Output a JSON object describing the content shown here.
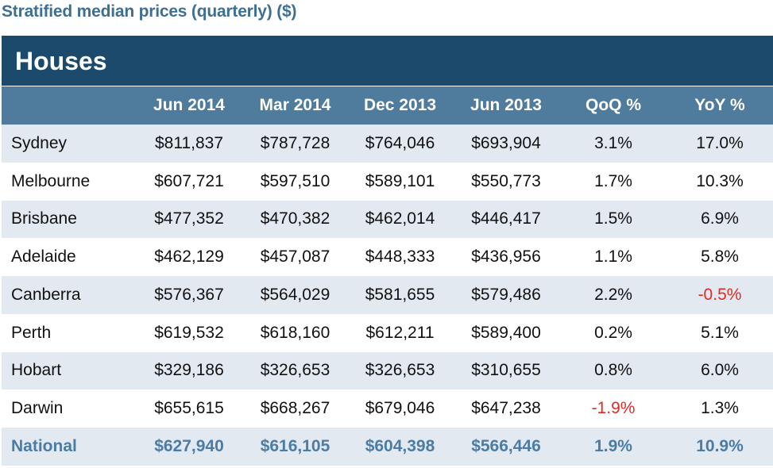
{
  "title": "Stratified median prices (quarterly) ($)",
  "section": "Houses",
  "columns": [
    "",
    "Jun 2014",
    "Mar 2014",
    "Dec 2013",
    "Jun 2013",
    "QoQ %",
    "YoY %"
  ],
  "rows": [
    {
      "city": "Sydney",
      "jun2014": "$811,837",
      "mar2014": "$787,728",
      "dec2013": "$764,046",
      "jun2013": "$693,904",
      "qoq": "3.1%",
      "yoy": "17.0%"
    },
    {
      "city": "Melbourne",
      "jun2014": "$607,721",
      "mar2014": "$597,510",
      "dec2013": "$589,101",
      "jun2013": "$550,773",
      "qoq": "1.7%",
      "yoy": "10.3%"
    },
    {
      "city": "Brisbane",
      "jun2014": "$477,352",
      "mar2014": "$470,382",
      "dec2013": "$462,014",
      "jun2013": "$446,417",
      "qoq": "1.5%",
      "yoy": "6.9%"
    },
    {
      "city": "Adelaide",
      "jun2014": "$462,129",
      "mar2014": "$457,087",
      "dec2013": "$448,333",
      "jun2013": "$436,956",
      "qoq": "1.1%",
      "yoy": "5.8%"
    },
    {
      "city": "Canberra",
      "jun2014": "$576,367",
      "mar2014": "$564,029",
      "dec2013": "$581,655",
      "jun2013": "$579,486",
      "qoq": "2.2%",
      "yoy": "-0.5%"
    },
    {
      "city": "Perth",
      "jun2014": "$619,532",
      "mar2014": "$618,160",
      "dec2013": "$612,211",
      "jun2013": "$589,400",
      "qoq": "0.2%",
      "yoy": "5.1%"
    },
    {
      "city": "Hobart",
      "jun2014": "$329,186",
      "mar2014": "$326,653",
      "dec2013": "$326,653",
      "jun2013": "$310,655",
      "qoq": "0.8%",
      "yoy": "6.0%"
    },
    {
      "city": "Darwin",
      "jun2014": "$655,615",
      "mar2014": "$668,267",
      "dec2013": "$679,046",
      "jun2013": "$647,238",
      "qoq": "-1.9%",
      "yoy": "1.3%"
    }
  ],
  "national": {
    "city": "National",
    "jun2014": "$627,940",
    "mar2014": "$616,105",
    "dec2013": "$604,398",
    "jun2013": "$566,446",
    "qoq": "1.9%",
    "yoy": "10.9%"
  },
  "colors": {
    "title": "#3d6f93",
    "section_bg": "#1b4a6c",
    "header_bg": "#4f7b9d",
    "row_shade": "#e3e9f1",
    "national_text": "#4b7ca3",
    "negative": "#e02b22"
  }
}
